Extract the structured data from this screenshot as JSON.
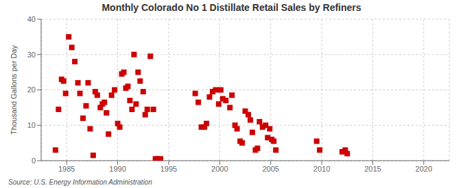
{
  "chart_data": {
    "type": "scatter",
    "title": "Monthly Colorado No 1 Distillate Retail Sales by Refiners",
    "ylabel": "Thousand Gallons per Day",
    "source": "Source: U.S. Energy Information Administration",
    "color": "#cc0000",
    "marker": "square",
    "grid": true,
    "xlim": [
      1982.5,
      2022.5
    ],
    "ylim": [
      0,
      40
    ],
    "xticks": [
      1985,
      1990,
      1995,
      2000,
      2005,
      2010,
      2015,
      2020
    ],
    "yticks": [
      0,
      10,
      20,
      30,
      40
    ],
    "x": [
      1983.9,
      1984.2,
      1984.5,
      1984.7,
      1984.9,
      1985.2,
      1985.5,
      1985.8,
      1986.1,
      1986.3,
      1986.6,
      1986.9,
      1987.1,
      1987.3,
      1987.6,
      1987.8,
      1988.0,
      1988.3,
      1988.5,
      1988.7,
      1988.9,
      1989.1,
      1989.4,
      1989.7,
      1990.0,
      1990.2,
      1990.4,
      1990.6,
      1990.8,
      1991.0,
      1991.2,
      1991.4,
      1991.6,
      1991.8,
      1992.0,
      1992.2,
      1992.5,
      1992.7,
      1992.9,
      1993.2,
      1993.5,
      1993.7,
      1993.9,
      1994.2,
      1997.6,
      1997.9,
      1998.2,
      1998.5,
      1998.7,
      1999.0,
      1999.3,
      1999.6,
      1999.9,
      2000.1,
      2000.3,
      2000.6,
      2001.0,
      2001.2,
      2001.5,
      2001.7,
      2002.0,
      2002.2,
      2002.5,
      2002.8,
      2003.0,
      2003.2,
      2003.5,
      2003.7,
      2003.9,
      2004.2,
      2004.5,
      2004.7,
      2004.9,
      2005.1,
      2005.3,
      2005.5,
      2009.5,
      2009.8,
      2012.0,
      2012.3,
      2012.5
    ],
    "y": [
      3.0,
      14.5,
      23.0,
      22.5,
      19.0,
      35.0,
      32.0,
      28.0,
      22.0,
      19.0,
      12.0,
      15.5,
      22.0,
      9.0,
      1.5,
      19.5,
      18.5,
      15.0,
      16.0,
      16.5,
      13.5,
      7.5,
      18.5,
      20.0,
      10.5,
      9.5,
      24.5,
      25.0,
      20.5,
      21.0,
      17.0,
      14.5,
      30.0,
      16.0,
      25.0,
      22.5,
      19.5,
      13.0,
      14.5,
      29.5,
      14.5,
      0.5,
      0.5,
      0.5,
      19.0,
      16.5,
      9.5,
      9.5,
      10.5,
      18.0,
      19.5,
      20.0,
      16.0,
      20.0,
      17.5,
      17.0,
      15.0,
      18.5,
      10.0,
      9.0,
      5.5,
      5.0,
      14.0,
      13.0,
      11.5,
      8.0,
      3.0,
      3.5,
      11.0,
      9.5,
      10.0,
      6.5,
      9.0,
      6.0,
      5.5,
      3.0,
      5.5,
      3.0,
      2.5,
      3.0,
      2.0
    ]
  }
}
